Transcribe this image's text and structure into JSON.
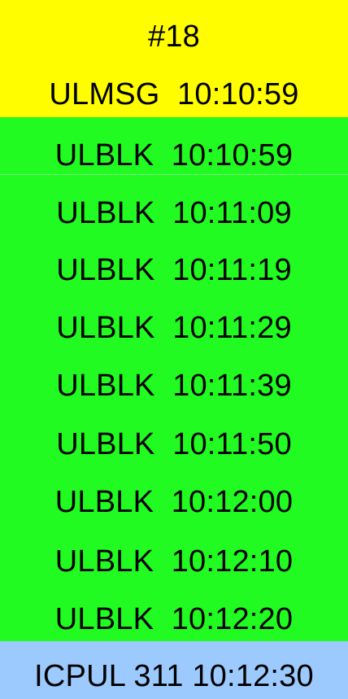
{
  "header": {
    "id": "#18",
    "message": "ULMSG  10:10:59",
    "color": "#fffd00"
  },
  "list": {
    "color": "#21fb21",
    "items": [
      "ULBLK  10:10:59",
      "ULBLK  10:11:09",
      "ULBLK  10:11:19",
      "ULBLK  10:11:29",
      "ULBLK  10:11:39",
      "ULBLK  10:11:50",
      "ULBLK  10:12:00",
      "ULBLK  10:12:10",
      "ULBLK  10:12:20"
    ]
  },
  "footer": {
    "message": "ICPUL 311 10:12:30",
    "color": "#9ccaff"
  }
}
